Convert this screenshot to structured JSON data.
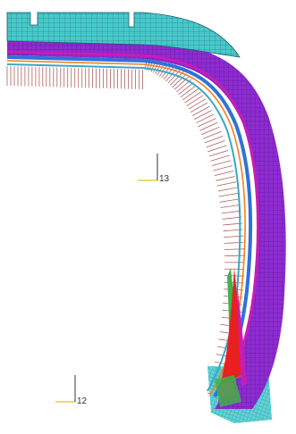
{
  "triads": [
    {
      "label": "13"
    },
    {
      "label": "12"
    }
  ],
  "colors": {
    "tread": "#47c9c9",
    "mesh_line": "#1e5a6e",
    "belt_outer": "#8e2bd1",
    "belt_magenta": "#c81db3",
    "belt_blue": "#2f72d8",
    "orange_line": "#f08020",
    "green_fill": "#3fb14a",
    "apex_red": "#e82020",
    "bead_magenta": "#e8189a",
    "pressure_lines": "#b06060",
    "axis_x": "#e8c020",
    "axis_y": "#333333"
  }
}
